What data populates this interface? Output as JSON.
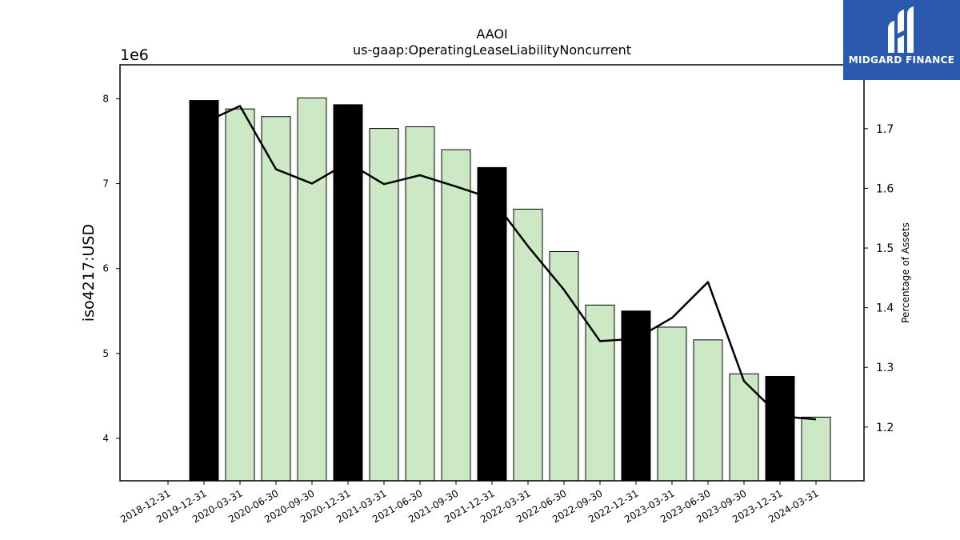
{
  "chart_data": {
    "type": "bar",
    "title": "AAOI",
    "subtitle": "us-gaap:OperatingLeaseLiabilityNoncurrent",
    "ylabel": "iso4217:USD",
    "y_offset_label": "1e6",
    "y2label": "Percentage of Assets",
    "categories": [
      "2018-12-31",
      "2019-12-31",
      "2020-03-31",
      "2020-06-30",
      "2020-09-30",
      "2020-12-31",
      "2021-03-31",
      "2021-06-30",
      "2021-09-30",
      "2021-12-31",
      "2022-03-31",
      "2022-06-30",
      "2022-09-30",
      "2022-12-31",
      "2023-03-31",
      "2023-06-30",
      "2023-09-30",
      "2023-12-31",
      "2024-03-31"
    ],
    "values": [
      null,
      7.98,
      7.88,
      7.79,
      8.01,
      7.93,
      7.65,
      7.67,
      7.4,
      7.19,
      6.7,
      6.2,
      5.57,
      5.5,
      5.31,
      5.16,
      4.76,
      4.73,
      4.25
    ],
    "annual": [
      false,
      true,
      false,
      false,
      false,
      true,
      false,
      false,
      false,
      true,
      false,
      false,
      false,
      true,
      false,
      false,
      false,
      true,
      false
    ],
    "pct_of_assets": [
      null,
      1.71,
      1.738,
      1.632,
      1.608,
      1.643,
      1.607,
      1.622,
      1.603,
      1.583,
      1.503,
      1.43,
      1.344,
      1.348,
      1.383,
      1.443,
      1.277,
      1.218,
      1.213
    ],
    "ylim": [
      3.5,
      8.4
    ],
    "yticks": [
      4,
      5,
      6,
      7,
      8
    ],
    "y2lim": [
      1.11,
      1.807
    ],
    "y2ticks": [
      1.2,
      1.3,
      1.4,
      1.5,
      1.6,
      1.7
    ],
    "colors": {
      "annual_bar": "#000000",
      "quarterly_bar": "#cde8c5",
      "line": "#000000"
    }
  },
  "logo": {
    "text": "MIDGARD FINANCE",
    "background": "#2a59ad"
  }
}
